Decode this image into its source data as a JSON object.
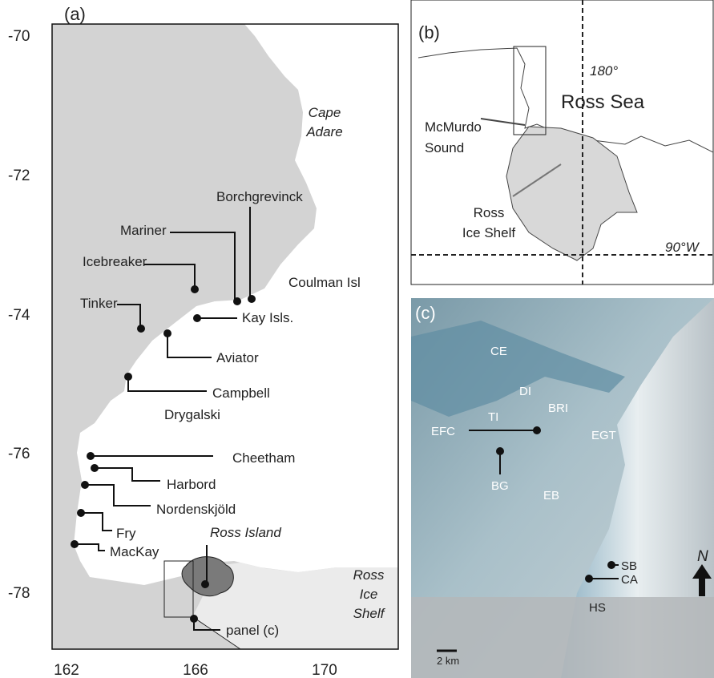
{
  "panel_a": {
    "label": "(a)",
    "yticks": [
      -70,
      -72,
      -74,
      -76,
      -78
    ],
    "xticks": [
      162,
      166,
      170
    ],
    "places": [
      "Borchgrevinck",
      "Mariner",
      "Icebreaker",
      "Coulman Isl",
      "Kay Isls.",
      "Tinker",
      "Aviator",
      "Campbell",
      "Drygalski",
      "Cheetham",
      "Harbord",
      "Nordenskjöld",
      "Fry",
      "MacKay",
      "panel (c)"
    ],
    "italic_places": [
      [
        "Cape",
        "Adare"
      ],
      [
        "Ross Island"
      ],
      [
        "Ross",
        "Ice",
        "Shelf"
      ]
    ]
  },
  "panel_b": {
    "label": "(b)",
    "meridian": "180°",
    "sea": "Ross Sea",
    "sound": [
      "McMurdo",
      "Sound"
    ],
    "shelf": [
      "Ross",
      "Ice Shelf"
    ],
    "parallel": "90°W"
  },
  "panel_c": {
    "label": "(c)",
    "places": [
      "CE",
      "DI",
      "BRI",
      "TI",
      "EFC",
      "EGT",
      "BG",
      "EB",
      "SB",
      "CA",
      "HS"
    ],
    "scale": "2 km",
    "north": "N"
  }
}
